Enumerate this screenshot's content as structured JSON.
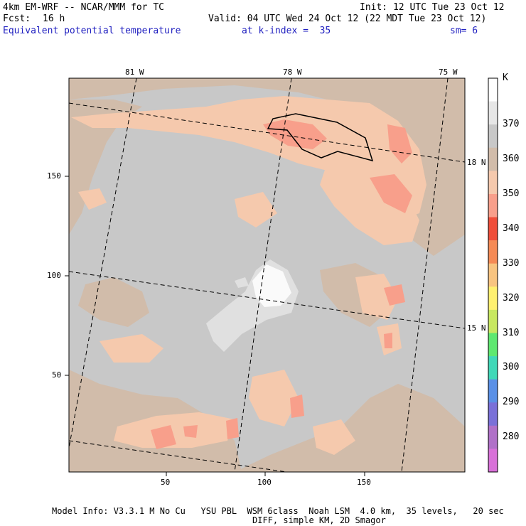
{
  "header": {
    "model": "4km EM-WRF -- NCAR/MMM for TC",
    "init": "Init: 12 UTC Tue 23 Oct 12",
    "fcst_label": "Fcst:",
    "fcst_value": "16 h",
    "valid": "Valid: 04 UTC Wed 24 Oct 12 (22 MDT Tue 23 Oct 12)",
    "field": "Equivalent potential temperature",
    "level": "at k-index =  35",
    "smoothing": "sm= 6"
  },
  "map": {
    "lon_labels": [
      "81 W",
      "78 W",
      "75 W"
    ],
    "lat_labels": [
      "18 N",
      "15 N"
    ],
    "x_ticks": [
      "50",
      "100",
      "150"
    ],
    "y_ticks": [
      "150",
      "100",
      "50"
    ],
    "colors": {
      "bg": "#c8c8c8",
      "tan": "#d1bcaa",
      "peach": "#f5c9ad",
      "salmon": "#f89f8b",
      "light": "#e0e0e0",
      "white": "#fafafa"
    }
  },
  "colorbar": {
    "unit": "K",
    "levels": [
      "370",
      "360",
      "350",
      "340",
      "330",
      "320",
      "310",
      "300",
      "290",
      "280"
    ],
    "colors": [
      "#ffffff",
      "#e6e6e6",
      "#c8c8c8",
      "#d1bcaa",
      "#f5c9ad",
      "#f89f8b",
      "#f04e3a",
      "#f58a55",
      "#f8c480",
      "#fff070",
      "#c8e860",
      "#5ee870",
      "#40d8b8",
      "#5a90e6",
      "#7a70d8",
      "#b070c8",
      "#d870d8"
    ]
  },
  "footer": {
    "line1": "Model Info: V3.3.1 M No Cu   YSU PBL  WSM 6class  Noah LSM  4.0 km,  35 levels,   20 sec",
    "line2": "DIFF, simple KM, 2D Smagor"
  }
}
